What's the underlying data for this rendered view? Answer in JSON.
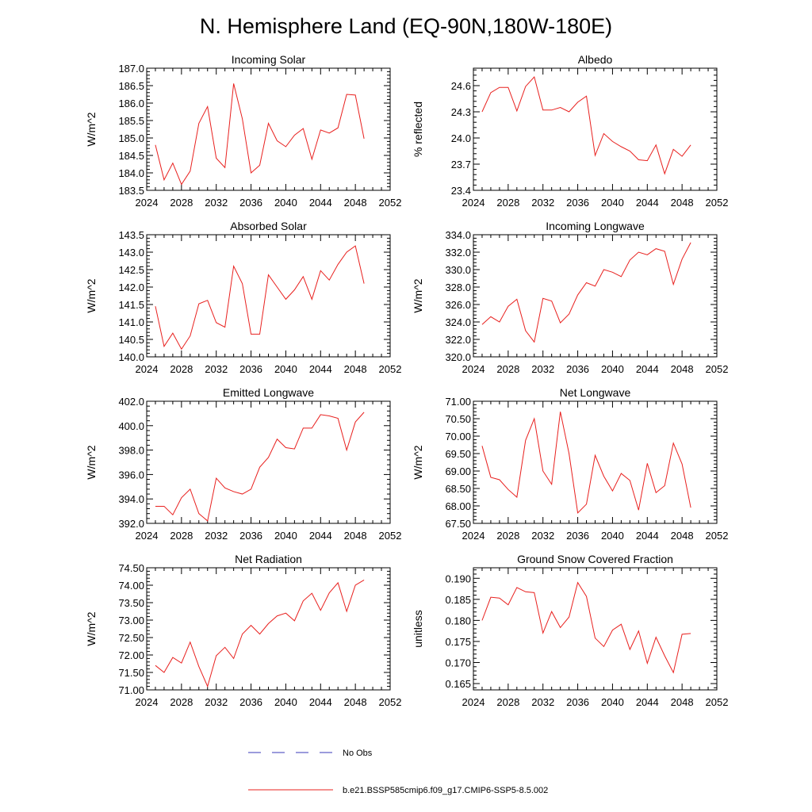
{
  "figure": {
    "title": "N. Hemisphere Land (EQ-90N,180W-180E)",
    "line_color": "#e8201e",
    "obs_color": "#3a3ab8"
  },
  "legend": {
    "items": [
      {
        "label": "No Obs",
        "style": "dashed",
        "color": "#3a3ab8"
      },
      {
        "label": "b.e21.BSSP585cmip6.f09_g17.CMIP6-SSP5-8.5.002",
        "style": "solid",
        "color": "#e8201e"
      }
    ]
  },
  "chart_data": [
    {
      "type": "line",
      "title": "Incoming Solar",
      "xlabel": "",
      "ylabel": "W/m^2",
      "xlim": [
        2024,
        2052
      ],
      "ylim": [
        183.5,
        187.0
      ],
      "xticks": [
        "2024",
        "2028",
        "2032",
        "2036",
        "2040",
        "2044",
        "2048",
        "2052"
      ],
      "yticks": [
        "183.5",
        "184.0",
        "184.5",
        "185.0",
        "185.5",
        "186.0",
        "186.5",
        "187.0"
      ],
      "x": [
        2025,
        2026,
        2027,
        2028,
        2029,
        2030,
        2031,
        2032,
        2033,
        2034,
        2035,
        2036,
        2037,
        2038,
        2039,
        2040,
        2041,
        2042,
        2043,
        2044,
        2045,
        2046,
        2047,
        2048,
        2049
      ],
      "values": [
        184.8,
        183.8,
        184.28,
        183.67,
        184.05,
        185.42,
        185.9,
        184.42,
        184.15,
        186.56,
        185.55,
        184.0,
        184.22,
        185.42,
        184.92,
        184.75,
        185.08,
        185.27,
        184.39,
        185.23,
        185.14,
        185.29,
        186.25,
        186.23,
        184.98
      ]
    },
    {
      "type": "line",
      "title": "Albedo",
      "xlabel": "",
      "ylabel": "% reflected",
      "xlim": [
        2024,
        2052
      ],
      "ylim": [
        23.4,
        24.8
      ],
      "xticks": [
        "2024",
        "2028",
        "2032",
        "2036",
        "2040",
        "2044",
        "2048",
        "2052"
      ],
      "yticks": [
        "23.4",
        "23.7",
        "24.0",
        "24.3",
        "24.6"
      ],
      "x": [
        2025,
        2026,
        2027,
        2028,
        2029,
        2030,
        2031,
        2032,
        2033,
        2034,
        2035,
        2036,
        2037,
        2038,
        2039,
        2040,
        2041,
        2042,
        2043,
        2044,
        2045,
        2046,
        2047,
        2048,
        2049
      ],
      "values": [
        24.3,
        24.52,
        24.58,
        24.58,
        24.31,
        24.59,
        24.7,
        24.32,
        24.32,
        24.35,
        24.3,
        24.41,
        24.48,
        23.8,
        24.05,
        23.96,
        23.9,
        23.85,
        23.75,
        23.74,
        23.92,
        23.59,
        23.87,
        23.79,
        23.92
      ]
    },
    {
      "type": "line",
      "title": "Absorbed Solar",
      "xlabel": "",
      "ylabel": "W/m^2",
      "xlim": [
        2024,
        2052
      ],
      "ylim": [
        140.0,
        143.5
      ],
      "xticks": [
        "2024",
        "2028",
        "2032",
        "2036",
        "2040",
        "2044",
        "2048",
        "2052"
      ],
      "yticks": [
        "140.0",
        "140.5",
        "141.0",
        "141.5",
        "142.0",
        "142.5",
        "143.0",
        "143.5"
      ],
      "x": [
        2025,
        2026,
        2027,
        2028,
        2029,
        2030,
        2031,
        2032,
        2033,
        2034,
        2035,
        2036,
        2037,
        2038,
        2039,
        2040,
        2041,
        2042,
        2043,
        2044,
        2045,
        2046,
        2047,
        2048,
        2049
      ],
      "values": [
        141.45,
        140.3,
        140.68,
        140.22,
        140.6,
        141.52,
        141.62,
        140.98,
        140.85,
        142.6,
        142.1,
        140.65,
        140.65,
        142.35,
        142.0,
        141.65,
        141.92,
        142.3,
        141.65,
        142.47,
        142.2,
        142.65,
        143.0,
        143.18,
        142.1
      ]
    },
    {
      "type": "line",
      "title": "Incoming Longwave",
      "xlabel": "",
      "ylabel": "W/m^2",
      "xlim": [
        2024,
        2052
      ],
      "ylim": [
        320.0,
        334.0
      ],
      "xticks": [
        "2024",
        "2028",
        "2032",
        "2036",
        "2040",
        "2044",
        "2048",
        "2052"
      ],
      "yticks": [
        "320.0",
        "322.0",
        "324.0",
        "326.0",
        "328.0",
        "330.0",
        "332.0",
        "334.0"
      ],
      "x": [
        2025,
        2026,
        2027,
        2028,
        2029,
        2030,
        2031,
        2032,
        2033,
        2034,
        2035,
        2036,
        2037,
        2038,
        2039,
        2040,
        2041,
        2042,
        2043,
        2044,
        2045,
        2046,
        2047,
        2048,
        2049
      ],
      "values": [
        323.7,
        324.6,
        324.0,
        325.8,
        326.6,
        323.0,
        321.7,
        326.7,
        326.4,
        323.9,
        324.9,
        327.1,
        328.5,
        328.1,
        330.0,
        329.7,
        329.2,
        331.1,
        332.0,
        331.7,
        332.4,
        332.1,
        328.3,
        331.2,
        333.1
      ]
    },
    {
      "type": "line",
      "title": "Emitted Longwave",
      "xlabel": "",
      "ylabel": "W/m^2",
      "xlim": [
        2024,
        2052
      ],
      "ylim": [
        392.0,
        402.0
      ],
      "xticks": [
        "2024",
        "2028",
        "2032",
        "2036",
        "2040",
        "2044",
        "2048",
        "2052"
      ],
      "yticks": [
        "392.0",
        "394.0",
        "396.0",
        "398.0",
        "400.0",
        "402.0"
      ],
      "x": [
        2025,
        2026,
        2027,
        2028,
        2029,
        2030,
        2031,
        2032,
        2033,
        2034,
        2035,
        2036,
        2037,
        2038,
        2039,
        2040,
        2041,
        2042,
        2043,
        2044,
        2045,
        2046,
        2047,
        2048,
        2049
      ],
      "values": [
        393.4,
        393.4,
        392.7,
        394.1,
        394.8,
        392.8,
        392.2,
        395.7,
        394.9,
        394.6,
        394.4,
        394.8,
        396.6,
        397.4,
        398.9,
        398.2,
        398.1,
        399.8,
        399.8,
        400.9,
        400.8,
        400.6,
        398.0,
        400.3,
        401.1
      ]
    },
    {
      "type": "line",
      "title": "Net Longwave",
      "xlabel": "",
      "ylabel": "W/m^2",
      "xlim": [
        2024,
        2052
      ],
      "ylim": [
        67.5,
        71.0
      ],
      "xticks": [
        "2024",
        "2028",
        "2032",
        "2036",
        "2040",
        "2044",
        "2048",
        "2052"
      ],
      "yticks": [
        "67.50",
        "68.00",
        "68.50",
        "69.00",
        "69.50",
        "70.00",
        "70.50",
        "71.00"
      ],
      "x": [
        2025,
        2026,
        2027,
        2028,
        2029,
        2030,
        2031,
        2032,
        2033,
        2034,
        2035,
        2036,
        2037,
        2038,
        2039,
        2040,
        2041,
        2042,
        2043,
        2044,
        2045,
        2046,
        2047,
        2048,
        2049
      ],
      "values": [
        69.72,
        68.82,
        68.75,
        68.47,
        68.25,
        69.88,
        70.5,
        69.0,
        68.62,
        70.7,
        69.5,
        67.8,
        68.05,
        69.45,
        68.85,
        68.43,
        68.93,
        68.73,
        67.88,
        69.22,
        68.38,
        68.58,
        69.8,
        69.2,
        67.95
      ]
    },
    {
      "type": "line",
      "title": "Net Radiation",
      "xlabel": "",
      "ylabel": "W/m^2",
      "xlim": [
        2024,
        2052
      ],
      "ylim": [
        71.0,
        74.5
      ],
      "xticks": [
        "2024",
        "2028",
        "2032",
        "2036",
        "2040",
        "2044",
        "2048",
        "2052"
      ],
      "yticks": [
        "71.00",
        "71.50",
        "72.00",
        "72.50",
        "73.00",
        "73.50",
        "74.00",
        "74.50"
      ],
      "x": [
        2025,
        2026,
        2027,
        2028,
        2029,
        2030,
        2031,
        2032,
        2033,
        2034,
        2035,
        2036,
        2037,
        2038,
        2039,
        2040,
        2041,
        2042,
        2043,
        2044,
        2045,
        2046,
        2047,
        2048,
        2049
      ],
      "values": [
        71.7,
        71.5,
        71.93,
        71.77,
        72.37,
        71.67,
        71.1,
        71.98,
        72.22,
        71.9,
        72.6,
        72.85,
        72.6,
        72.9,
        73.12,
        73.2,
        72.98,
        73.55,
        73.77,
        73.28,
        73.78,
        74.07,
        73.25,
        74.0,
        74.15
      ]
    },
    {
      "type": "line",
      "title": "Ground Snow Covered Fraction",
      "xlabel": "",
      "ylabel": "unitless",
      "xlim": [
        2024,
        2052
      ],
      "ylim": [
        0.1635,
        0.1925
      ],
      "xticks": [
        "2024",
        "2028",
        "2032",
        "2036",
        "2040",
        "2044",
        "2048",
        "2052"
      ],
      "yticks": [
        "0.165",
        "0.170",
        "0.175",
        "0.180",
        "0.185",
        "0.190"
      ],
      "x": [
        2025,
        2026,
        2027,
        2028,
        2029,
        2030,
        2031,
        2032,
        2033,
        2034,
        2035,
        2036,
        2037,
        2038,
        2039,
        2040,
        2041,
        2042,
        2043,
        2044,
        2045,
        2046,
        2047,
        2048,
        2049
      ],
      "values": [
        0.18,
        0.1855,
        0.1853,
        0.1837,
        0.1878,
        0.1868,
        0.1866,
        0.177,
        0.1821,
        0.1783,
        0.1808,
        0.189,
        0.1857,
        0.1758,
        0.1738,
        0.1777,
        0.1791,
        0.1731,
        0.1775,
        0.1698,
        0.176,
        0.1716,
        0.1676,
        0.1767,
        0.1769
      ]
    }
  ]
}
